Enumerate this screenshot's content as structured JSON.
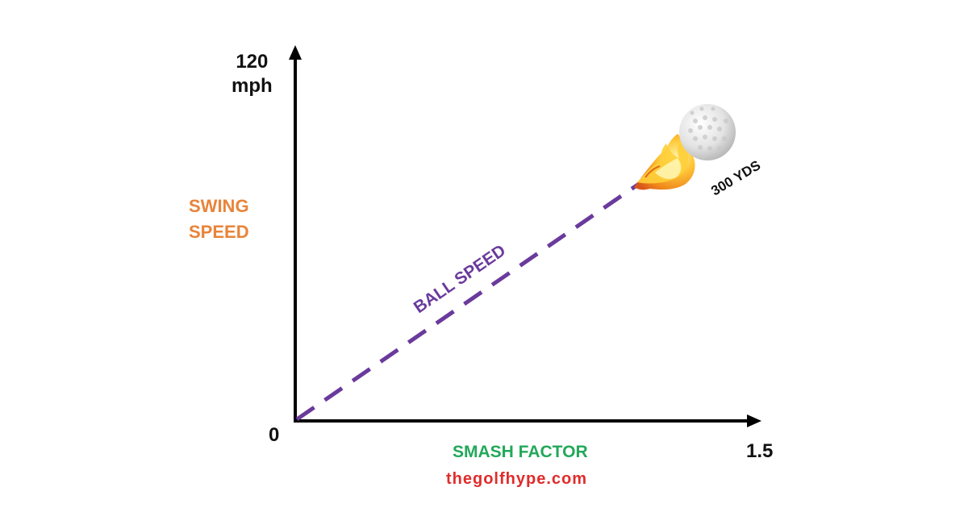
{
  "diagram": {
    "y_axis": {
      "max_value": "120",
      "max_unit": "mph",
      "name_line1": "SWING",
      "name_line2": "SPEED"
    },
    "x_axis": {
      "origin": "0",
      "max_value": "1.5",
      "name": "SMASH FACTOR"
    },
    "line_label": "BALL SPEED",
    "distance_label": "300 YDS",
    "website": "thegolfhype.com"
  },
  "colors": {
    "axis": "#000000",
    "line": "#6a3a9c",
    "swing_speed": "#e8843a",
    "smash_factor": "#22a85a",
    "website": "#e02b2b",
    "ball": "#e6e6e6",
    "flame_outer": "#f08a1c",
    "flame_inner": "#ffd23a"
  },
  "icons": {
    "ball": "golf-ball-icon",
    "flame": "flame-trail-icon"
  }
}
